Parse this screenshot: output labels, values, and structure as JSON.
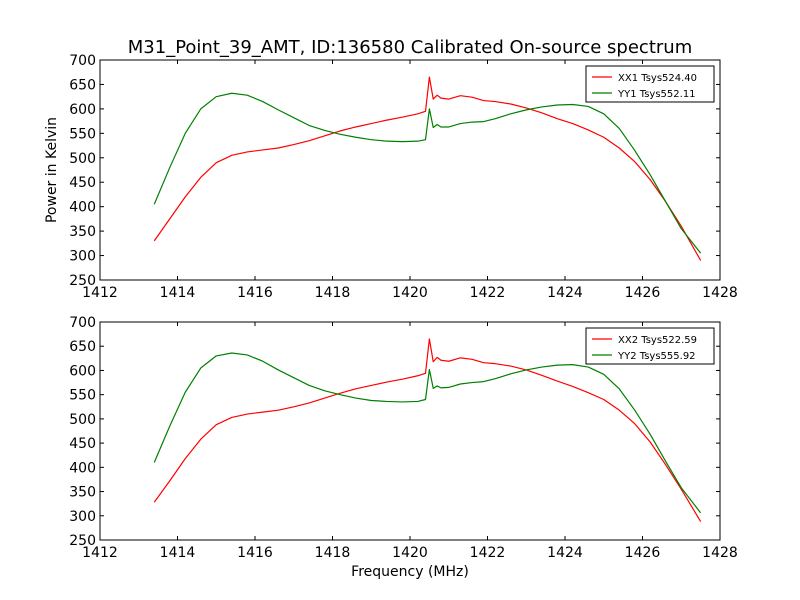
{
  "title": "M31_Point_39_AMT, ID:136580 Calibrated On-source spectrum",
  "chart_data": [
    {
      "type": "line",
      "xlabel": "",
      "ylabel": "Power in Kelvin",
      "xlim": [
        1412,
        1428
      ],
      "ylim": [
        250,
        700
      ],
      "xticks": [
        "1412",
        "1414",
        "1416",
        "1418",
        "1420",
        "1422",
        "1424",
        "1426",
        "1428"
      ],
      "yticks": [
        "250",
        "300",
        "350",
        "400",
        "450",
        "500",
        "550",
        "600",
        "650",
        "700"
      ],
      "grid": false,
      "legend": "top-right",
      "series": [
        {
          "name": "XX1 Tsys524.40",
          "color": "#ff0000",
          "x": [
            1413.4,
            1413.8,
            1414.2,
            1414.6,
            1415.0,
            1415.4,
            1415.8,
            1416.2,
            1416.6,
            1417.0,
            1417.4,
            1417.8,
            1418.2,
            1418.6,
            1419.0,
            1419.4,
            1419.8,
            1420.2,
            1420.4,
            1420.5,
            1420.6,
            1420.7,
            1420.8,
            1421.0,
            1421.3,
            1421.6,
            1421.9,
            1422.2,
            1422.6,
            1423.0,
            1423.4,
            1423.8,
            1424.2,
            1424.6,
            1425.0,
            1425.4,
            1425.8,
            1426.2,
            1426.6,
            1427.0,
            1427.5
          ],
          "y": [
            330,
            375,
            420,
            460,
            490,
            505,
            512,
            516,
            520,
            527,
            535,
            545,
            555,
            563,
            570,
            577,
            583,
            590,
            595,
            665,
            620,
            628,
            622,
            620,
            627,
            624,
            617,
            615,
            610,
            602,
            592,
            580,
            570,
            557,
            542,
            520,
            492,
            455,
            410,
            360,
            290
          ]
        },
        {
          "name": "YY1 Tsys552.11",
          "color": "#008000",
          "x": [
            1413.4,
            1413.8,
            1414.2,
            1414.6,
            1415.0,
            1415.4,
            1415.8,
            1416.2,
            1416.6,
            1417.0,
            1417.4,
            1417.8,
            1418.2,
            1418.6,
            1419.0,
            1419.4,
            1419.8,
            1420.2,
            1420.4,
            1420.5,
            1420.6,
            1420.7,
            1420.8,
            1421.0,
            1421.3,
            1421.6,
            1421.9,
            1422.2,
            1422.6,
            1423.0,
            1423.4,
            1423.8,
            1424.2,
            1424.6,
            1425.0,
            1425.4,
            1425.8,
            1426.2,
            1426.6,
            1427.0,
            1427.5
          ],
          "y": [
            405,
            480,
            550,
            600,
            625,
            632,
            628,
            615,
            598,
            582,
            566,
            556,
            548,
            542,
            537,
            534,
            533,
            534,
            537,
            600,
            562,
            568,
            563,
            563,
            570,
            573,
            574,
            580,
            590,
            598,
            604,
            608,
            609,
            605,
            590,
            560,
            515,
            465,
            410,
            355,
            305
          ]
        }
      ]
    },
    {
      "type": "line",
      "xlabel": "Frequency (MHz)",
      "ylabel": "",
      "xlim": [
        1412,
        1428
      ],
      "ylim": [
        250,
        700
      ],
      "xticks": [
        "1412",
        "1414",
        "1416",
        "1418",
        "1420",
        "1422",
        "1424",
        "1426",
        "1428"
      ],
      "yticks": [
        "250",
        "300",
        "350",
        "400",
        "450",
        "500",
        "550",
        "600",
        "650",
        "700"
      ],
      "grid": false,
      "legend": "top-right",
      "series": [
        {
          "name": "XX2 Tsys522.59",
          "color": "#ff0000",
          "x": [
            1413.4,
            1413.8,
            1414.2,
            1414.6,
            1415.0,
            1415.4,
            1415.8,
            1416.2,
            1416.6,
            1417.0,
            1417.4,
            1417.8,
            1418.2,
            1418.6,
            1419.0,
            1419.4,
            1419.8,
            1420.2,
            1420.4,
            1420.5,
            1420.6,
            1420.7,
            1420.8,
            1421.0,
            1421.3,
            1421.6,
            1421.9,
            1422.2,
            1422.6,
            1423.0,
            1423.4,
            1423.8,
            1424.2,
            1424.6,
            1425.0,
            1425.4,
            1425.8,
            1426.2,
            1426.6,
            1427.0,
            1427.5
          ],
          "y": [
            328,
            372,
            418,
            458,
            488,
            503,
            510,
            514,
            518,
            525,
            533,
            543,
            553,
            562,
            569,
            576,
            582,
            589,
            594,
            665,
            618,
            627,
            621,
            619,
            626,
            623,
            616,
            614,
            609,
            601,
            590,
            578,
            567,
            554,
            540,
            518,
            490,
            452,
            405,
            355,
            288
          ]
        },
        {
          "name": "YY2 Tsys555.92",
          "color": "#008000",
          "x": [
            1413.4,
            1413.8,
            1414.2,
            1414.6,
            1415.0,
            1415.4,
            1415.8,
            1416.2,
            1416.6,
            1417.0,
            1417.4,
            1417.8,
            1418.2,
            1418.6,
            1419.0,
            1419.4,
            1419.8,
            1420.2,
            1420.4,
            1420.5,
            1420.6,
            1420.7,
            1420.8,
            1421.0,
            1421.3,
            1421.6,
            1421.9,
            1422.2,
            1422.6,
            1423.0,
            1423.4,
            1423.8,
            1424.2,
            1424.6,
            1425.0,
            1425.4,
            1425.8,
            1426.2,
            1426.6,
            1427.0,
            1427.5
          ],
          "y": [
            410,
            485,
            555,
            605,
            630,
            636,
            632,
            619,
            601,
            585,
            569,
            558,
            550,
            543,
            538,
            536,
            535,
            536,
            540,
            602,
            563,
            568,
            564,
            565,
            572,
            575,
            577,
            583,
            593,
            601,
            607,
            611,
            612,
            607,
            592,
            562,
            518,
            468,
            412,
            358,
            306
          ]
        }
      ]
    }
  ]
}
